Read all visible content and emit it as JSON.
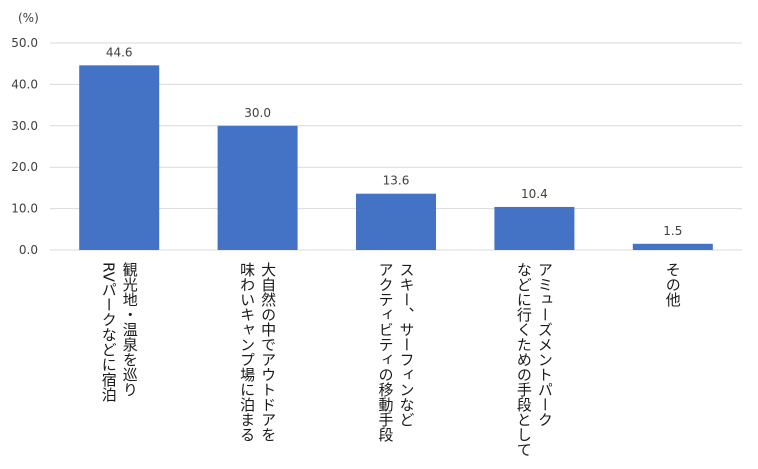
{
  "chart_data": {
    "type": "bar",
    "unit_label": "(%)",
    "categories": [
      [
        "観光地・温泉を巡り",
        "RVパークなどに宿泊"
      ],
      [
        "大自然の中でアウトドアを",
        "味わいキャンプ場に泊まる"
      ],
      [
        "スキー、サーフィンなど",
        "アクティビティの移動手段"
      ],
      [
        "アミューズメントパーク",
        "などに行くための手段として"
      ],
      [
        "その他"
      ]
    ],
    "values": [
      44.6,
      30.0,
      13.6,
      10.4,
      1.5
    ],
    "value_labels": [
      "44.6",
      "30.0",
      "13.6",
      "10.4",
      "1.5"
    ],
    "ylim": [
      0,
      50
    ],
    "y_ticks": [
      0,
      10,
      20,
      30,
      40,
      50
    ],
    "y_tick_labels": [
      "0.0",
      "10.0",
      "20.0",
      "30.0",
      "40.0",
      "50.0"
    ],
    "bar_color": "#4472C4",
    "grid": true,
    "grid_color": "#d9d9d9",
    "legend": "none"
  }
}
